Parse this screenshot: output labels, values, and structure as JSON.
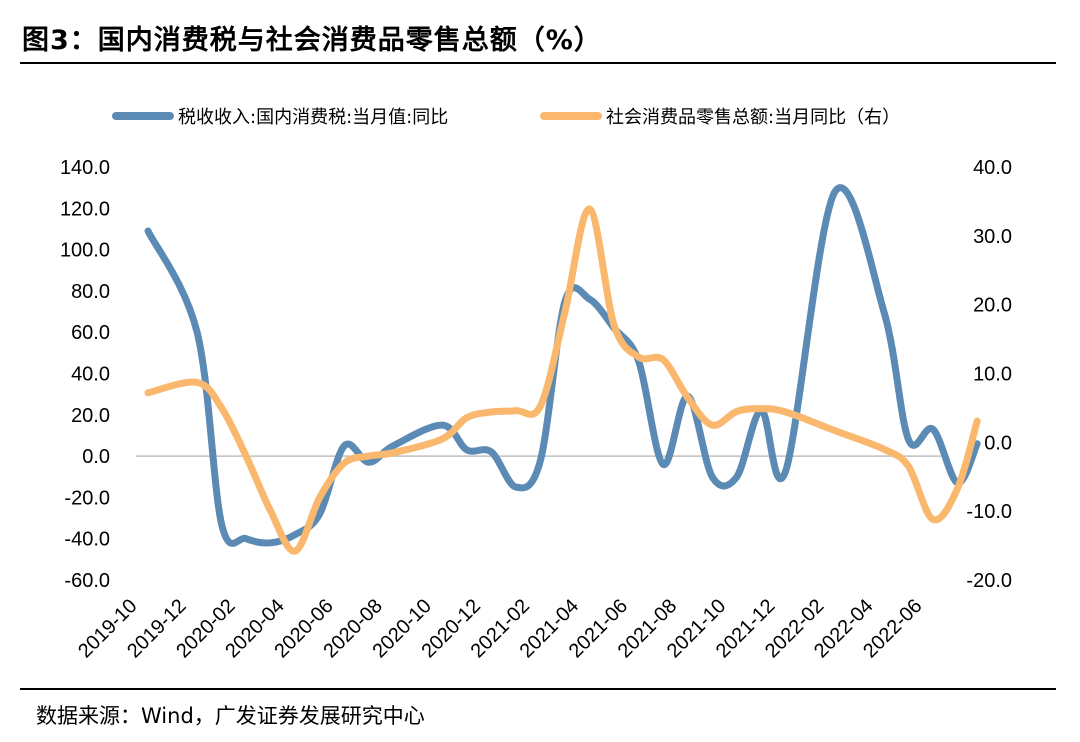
{
  "header": {
    "title": "图3：国内消费税与社会消费品零售总额（%）"
  },
  "footer": {
    "source": "数据来源：Wind，广发证券发展研究中心"
  },
  "chart_data": {
    "type": "line",
    "title": "图3：国内消费税与社会消费品零售总额（%）",
    "categories": [
      "2019-10",
      "2019-12",
      "2020-02",
      "2020-04",
      "2020-06",
      "2020-08",
      "2020-10",
      "2020-12",
      "2021-02",
      "2021-04",
      "2021-06",
      "2021-08",
      "2021-10",
      "2021-12",
      "2022-02",
      "2022-04",
      "2022-06"
    ],
    "x_tick_labels": [
      "2019-10",
      "2019-12",
      "2020-02",
      "2020-04",
      "2020-06",
      "2020-08",
      "2020-10",
      "2020-12",
      "2021-02",
      "2021-04",
      "2021-06",
      "2021-08",
      "2021-10",
      "2021-12",
      "2022-02",
      "2022-04",
      "2022-06"
    ],
    "left_axis": {
      "ylim": [
        -60,
        140
      ],
      "ticks": [
        "140.0",
        "120.0",
        "100.0",
        "80.0",
        "60.0",
        "40.0",
        "20.0",
        "0.0",
        "-20.0",
        "-40.0",
        "-60.0"
      ]
    },
    "right_axis": {
      "ylim": [
        -20,
        40
      ],
      "ticks": [
        "40.0",
        "30.0",
        "20.0",
        "10.0",
        "0.0",
        "-10.0",
        "-20.0"
      ]
    },
    "series": [
      {
        "name": "税收收入:国内消费税:当月值:同比",
        "axis": "left",
        "color": "#5b8bb5",
        "x": [
          0,
          1,
          1.5,
          2,
          2.5,
          3,
          3.5,
          4,
          4.5,
          5,
          6,
          6.5,
          7,
          7.5,
          8,
          8.5,
          9,
          9.5,
          10,
          10.5,
          11,
          11.5,
          12,
          12.5,
          13,
          14,
          15,
          15.5,
          16,
          16.5,
          16.9
        ],
        "values": [
          109,
          60,
          -33,
          -40,
          -42,
          -38,
          -28,
          5,
          -3,
          5,
          15,
          3,
          2,
          -15,
          -2,
          75,
          76,
          62,
          46,
          -4,
          29,
          -10,
          -10,
          22,
          -7,
          128,
          70,
          8,
          13,
          -13,
          6
        ]
      },
      {
        "name": "社会消费品零售总额:当月同比（右）",
        "axis": "right",
        "color": "#f9b86d",
        "x": [
          0,
          1,
          1.5,
          2,
          2.5,
          3,
          3.5,
          4,
          4.5,
          5,
          6,
          6.5,
          7,
          7.5,
          8,
          8.5,
          9,
          9.5,
          10,
          10.5,
          11,
          11.5,
          12,
          12.5,
          13,
          14,
          15,
          15.5,
          16,
          16.5,
          16.9
        ],
        "values": [
          7.2,
          8.7,
          5,
          -2,
          -10,
          -15.8,
          -8,
          -3,
          -2,
          -1.5,
          0.5,
          3.6,
          4.4,
          4.6,
          5.3,
          19,
          33.9,
          17,
          12.4,
          12,
          6.5,
          2.5,
          4.5,
          4.9,
          4.4,
          1.7,
          -1,
          -3.5,
          -11.2,
          -6.7,
          3.1
        ]
      }
    ],
    "legend": {
      "position": "top"
    }
  }
}
